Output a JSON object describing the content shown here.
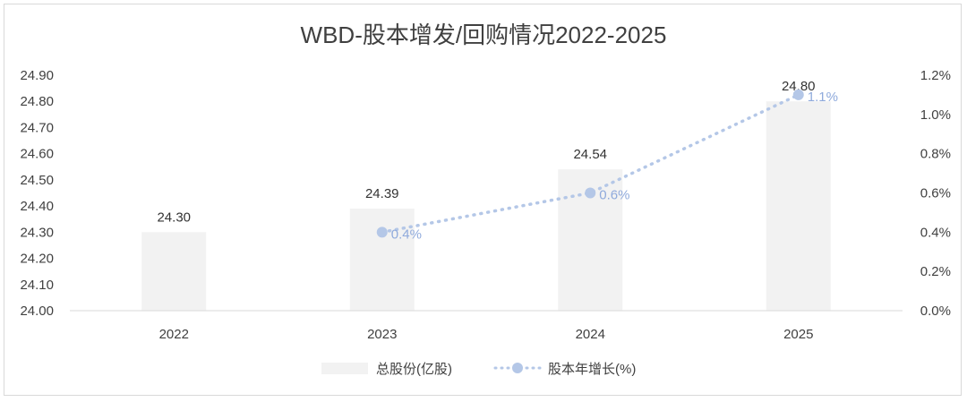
{
  "chart_data": {
    "type": "bar",
    "title": "WBD-股本增发/回购情况2022-2025",
    "categories": [
      "2022",
      "2023",
      "2024",
      "2025"
    ],
    "series": [
      {
        "name": "总股份(亿股)",
        "type": "bar",
        "axis": "left",
        "values": [
          24.3,
          24.39,
          24.54,
          24.8
        ],
        "labels": [
          "24.30",
          "24.39",
          "24.54",
          "24.80"
        ]
      },
      {
        "name": "股本年增长(%)",
        "type": "line",
        "axis": "right",
        "style": "dotted",
        "values": [
          null,
          0.4,
          0.6,
          1.1
        ],
        "labels": [
          "",
          "0.4%",
          "0.6%",
          "1.1%"
        ]
      }
    ],
    "y_left": {
      "min": 24.0,
      "max": 24.9,
      "ticks": [
        "24.00",
        "24.10",
        "24.20",
        "24.30",
        "24.40",
        "24.50",
        "24.60",
        "24.70",
        "24.80",
        "24.90"
      ]
    },
    "y_right": {
      "min": 0.0,
      "max": 1.2,
      "ticks": [
        "0.0%",
        "0.2%",
        "0.4%",
        "0.6%",
        "0.8%",
        "1.0%",
        "1.2%"
      ]
    },
    "grid": false,
    "legend": "bottom-center",
    "colors": {
      "bar": "#f2f2f2",
      "line": "#b4c7e7",
      "line_label": "#8faadc",
      "axis": "#d9d9d9"
    }
  }
}
